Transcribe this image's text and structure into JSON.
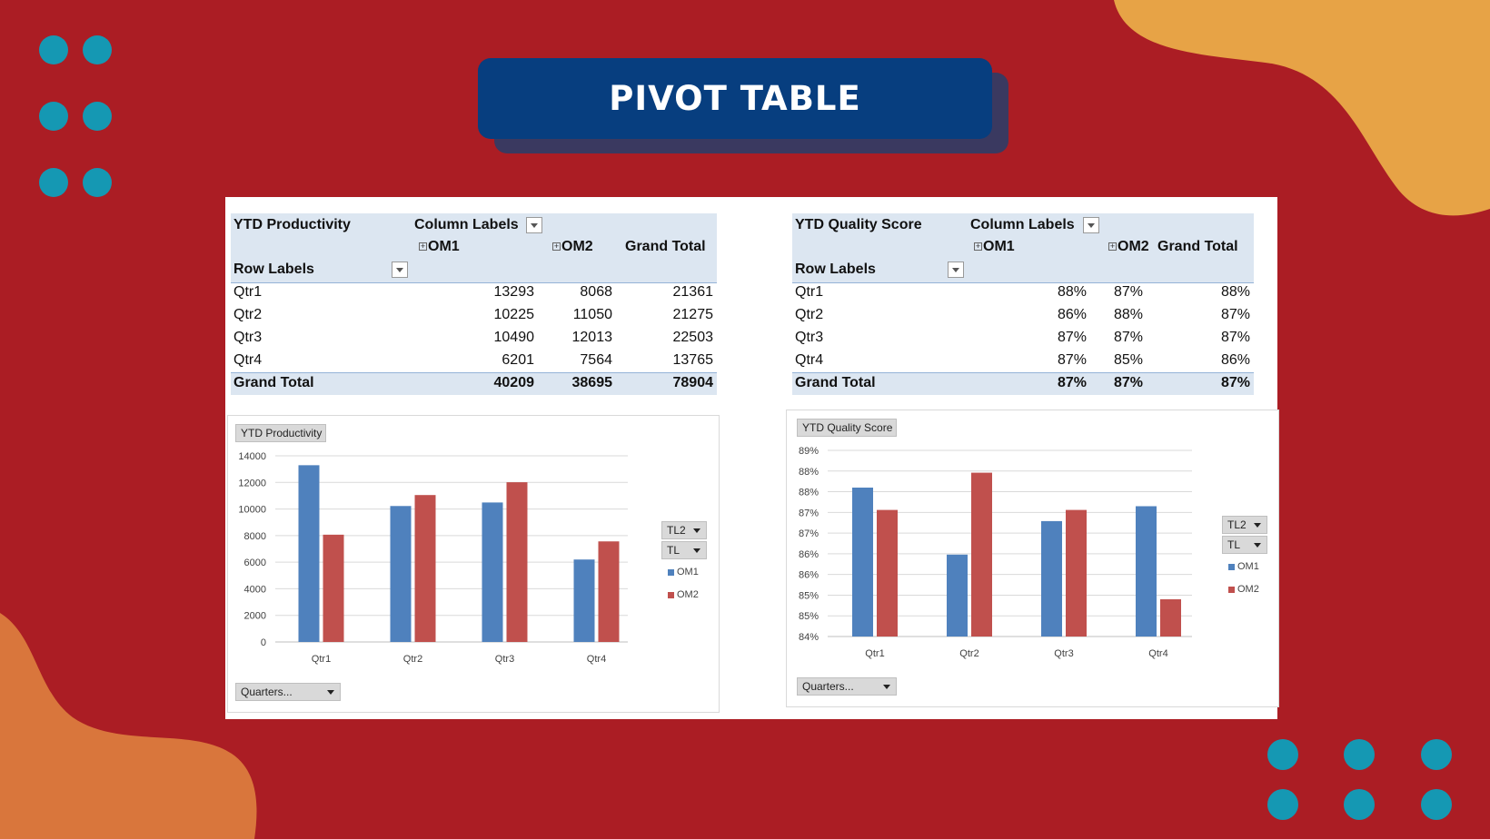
{
  "slide": {
    "title": "PIVOT TABLE"
  },
  "colors": {
    "background": "#ab1d24",
    "blob_top": "#e7a346",
    "blob_bottom": "#d9763c",
    "dots": "#1598b3",
    "title_box": "#073e7f",
    "om1": "#4f81bd",
    "om2": "#c0504d",
    "pivot_header": "#dce6f1"
  },
  "productivity_table": {
    "title": "YTD Productivity",
    "column_labels": "Column Labels",
    "row_labels": "Row Labels",
    "columns": [
      "OM1",
      "OM2",
      "Grand Total"
    ],
    "rows": [
      {
        "label": "Qtr1",
        "values": [
          "13293",
          "8068",
          "21361"
        ]
      },
      {
        "label": "Qtr2",
        "values": [
          "10225",
          "11050",
          "21275"
        ]
      },
      {
        "label": "Qtr3",
        "values": [
          "10490",
          "12013",
          "22503"
        ]
      },
      {
        "label": "Qtr4",
        "values": [
          "6201",
          "7564",
          "13765"
        ]
      }
    ],
    "total": {
      "label": "Grand Total",
      "values": [
        "40209",
        "38695",
        "78904"
      ]
    }
  },
  "quality_table": {
    "title": "YTD Quality Score",
    "column_labels": "Column Labels",
    "row_labels": "Row Labels",
    "columns": [
      "OM1",
      "OM2",
      "Grand Total"
    ],
    "rows": [
      {
        "label": "Qtr1",
        "values": [
          "88%",
          "87%",
          "88%"
        ]
      },
      {
        "label": "Qtr2",
        "values": [
          "86%",
          "88%",
          "87%"
        ]
      },
      {
        "label": "Qtr3",
        "values": [
          "87%",
          "87%",
          "87%"
        ]
      },
      {
        "label": "Qtr4",
        "values": [
          "87%",
          "85%",
          "86%"
        ]
      }
    ],
    "total": {
      "label": "Grand Total",
      "values": [
        "87%",
        "87%",
        "87%"
      ]
    }
  },
  "productivity_chart_ui": {
    "field_button": "YTD Productivity",
    "filter1": "TL2",
    "filter2": "TL",
    "axis_button": "Quarters..."
  },
  "quality_chart_ui": {
    "field_button": "YTD Quality Score",
    "filter1": "TL2",
    "filter2": "TL",
    "axis_button": "Quarters..."
  },
  "chart_data": [
    {
      "type": "bar",
      "title": "YTD Productivity",
      "categories": [
        "Qtr1",
        "Qtr2",
        "Qtr3",
        "Qtr4"
      ],
      "series": [
        {
          "name": "OM1",
          "values": [
            13293,
            10225,
            10490,
            6201
          ]
        },
        {
          "name": "OM2",
          "values": [
            8068,
            11050,
            12013,
            7564
          ]
        }
      ],
      "ylim": [
        0,
        14000
      ],
      "yticks": [
        "0",
        "2000",
        "4000",
        "6000",
        "8000",
        "10000",
        "12000",
        "14000"
      ],
      "grid": true,
      "legend": "right"
    },
    {
      "type": "bar",
      "title": "YTD Quality Score",
      "categories": [
        "Qtr1",
        "Qtr2",
        "Qtr3",
        "Qtr4"
      ],
      "series": [
        {
          "name": "OM1",
          "values": [
            88.0,
            86.2,
            87.1,
            87.5
          ]
        },
        {
          "name": "OM2",
          "values": [
            87.4,
            88.4,
            87.4,
            85.0
          ]
        }
      ],
      "ylim": [
        84,
        89
      ],
      "yticks": [
        "84%",
        "85%",
        "85%",
        "86%",
        "86%",
        "87%",
        "87%",
        "88%",
        "88%",
        "89%"
      ],
      "grid": true,
      "legend": "right"
    }
  ]
}
